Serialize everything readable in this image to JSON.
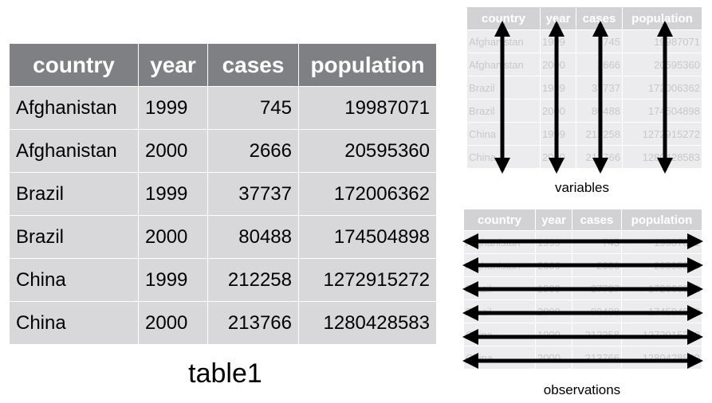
{
  "table": {
    "headers": [
      "country",
      "year",
      "cases",
      "population"
    ],
    "rows": [
      [
        "Afghanistan",
        "1999",
        "745",
        "19987071"
      ],
      [
        "Afghanistan",
        "2000",
        "2666",
        "20595360"
      ],
      [
        "Brazil",
        "1999",
        "37737",
        "172006362"
      ],
      [
        "Brazil",
        "2000",
        "80488",
        "174504898"
      ],
      [
        "China",
        "1999",
        "212258",
        "1272915272"
      ],
      [
        "China",
        "2000",
        "213766",
        "1280428583"
      ]
    ]
  },
  "captions": {
    "main": "table1",
    "variables": "variables",
    "observations": "observations"
  },
  "colors": {
    "header_bg": "#7f8083",
    "cell_bg": "#d8d8da",
    "faded_header_bg": "#d2d2d4",
    "faded_cell_bg": "#ececee",
    "arrow": "#000000"
  }
}
